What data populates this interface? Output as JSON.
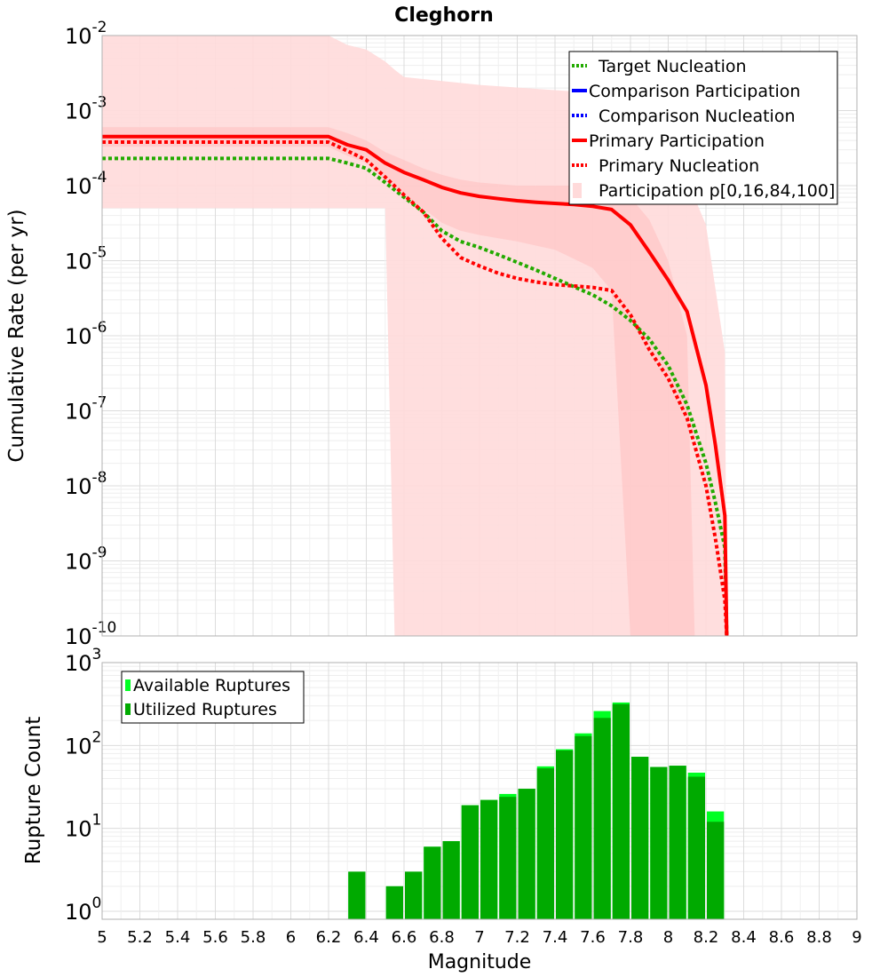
{
  "chart_data": [
    {
      "type": "line",
      "title": "Cleghorn",
      "xlabel": "",
      "ylabel": "Cumulative Rate (per yr)",
      "xlim": [
        5,
        9
      ],
      "ylim": [
        1e-10,
        0.01
      ],
      "yscale": "log",
      "grid": true,
      "legend_position": "top-right",
      "y_tick_labels": [
        {
          "base": "10",
          "exp": "-2",
          "value": 0.01
        },
        {
          "base": "10",
          "exp": "-3",
          "value": 0.001
        },
        {
          "base": "10",
          "exp": "-4",
          "value": 0.0001
        },
        {
          "base": "10",
          "exp": "-5",
          "value": 1e-05
        },
        {
          "base": "10",
          "exp": "-6",
          "value": 1e-06
        },
        {
          "base": "10",
          "exp": "-7",
          "value": 1e-07
        },
        {
          "base": "10",
          "exp": "-8",
          "value": 1e-08
        },
        {
          "base": "10",
          "exp": "-9",
          "value": 1e-09
        },
        {
          "base": "10",
          "exp": "-10",
          "value": 1e-10
        }
      ],
      "legend": [
        {
          "label": "Target Nucleation",
          "color": "#22aa00",
          "style": "dotted"
        },
        {
          "label": "Comparison Participation",
          "color": "#0000ff",
          "style": "solid"
        },
        {
          "label": "Comparison Nucleation",
          "color": "#0000ff",
          "style": "dotted"
        },
        {
          "label": "Primary Participation",
          "color": "#ff0000",
          "style": "solid"
        },
        {
          "label": "Primary Nucleation",
          "color": "#ff0000",
          "style": "dotted"
        },
        {
          "label": "Participation p[0,16,84,100]",
          "color": "#ffdada",
          "style": "band"
        }
      ],
      "series": [
        {
          "name": "Target Nucleation",
          "color": "#22aa00",
          "style": "dotted",
          "x": [
            5.0,
            6.2,
            6.3,
            6.4,
            6.5,
            6.6,
            6.7,
            6.8,
            6.9,
            7.0,
            7.1,
            7.2,
            7.3,
            7.4,
            7.5,
            7.6,
            7.7,
            7.8,
            7.9,
            8.0,
            8.1,
            8.2,
            8.25,
            8.3,
            8.31
          ],
          "y": [
            0.00023,
            0.00023,
            0.0002,
            0.00017,
            0.00011,
            7e-05,
            4.5e-05,
            2.5e-05,
            1.8e-05,
            1.5e-05,
            1.2e-05,
            9.5e-06,
            7.5e-06,
            5.8e-06,
            4.5e-06,
            3.5e-06,
            2.5e-06,
            1.6e-06,
            9e-07,
            4e-07,
            1.2e-07,
            2e-08,
            6e-09,
            1.5e-09,
            1e-10
          ]
        },
        {
          "name": "Primary Participation",
          "color": "#ff0000",
          "style": "solid",
          "x": [
            5.0,
            6.2,
            6.3,
            6.4,
            6.5,
            6.6,
            6.7,
            6.8,
            6.9,
            7.0,
            7.1,
            7.2,
            7.3,
            7.4,
            7.5,
            7.6,
            7.7,
            7.8,
            7.9,
            8.0,
            8.1,
            8.2,
            8.25,
            8.3,
            8.31
          ],
          "y": [
            0.00045,
            0.00045,
            0.00035,
            0.0003,
            0.0002,
            0.00015,
            0.00012,
            9.5e-05,
            8e-05,
            7.2e-05,
            6.7e-05,
            6.3e-05,
            6e-05,
            5.8e-05,
            5.6e-05,
            5.3e-05,
            4.8e-05,
            3e-05,
            1.3e-05,
            5.5e-06,
            2.1e-06,
            2.2e-07,
            3.5e-08,
            4e-09,
            1e-10
          ]
        },
        {
          "name": "Primary Nucleation",
          "color": "#ff0000",
          "style": "dotted",
          "x": [
            5.0,
            6.2,
            6.3,
            6.4,
            6.5,
            6.6,
            6.7,
            6.8,
            6.9,
            7.0,
            7.1,
            7.2,
            7.3,
            7.4,
            7.5,
            7.6,
            7.7,
            7.8,
            7.9,
            8.0,
            8.1,
            8.2,
            8.25,
            8.3,
            8.31
          ],
          "y": [
            0.00038,
            0.00038,
            0.00029,
            0.00022,
            0.00013,
            7.5e-05,
            4.5e-05,
            2e-05,
            1.1e-05,
            8.5e-06,
            6.8e-06,
            5.8e-06,
            5.2e-06,
            4.8e-06,
            4.6e-06,
            4.4e-06,
            4e-06,
            1.9e-06,
            6.5e-07,
            2.7e-07,
            8e-08,
            1e-08,
            2e-09,
            3e-10,
            1e-10
          ]
        }
      ],
      "bands": [
        {
          "name": "p0-p100",
          "color": "#ffdada",
          "opacity": 0.9,
          "x": [
            5.0,
            6.2,
            6.3,
            6.4,
            6.5,
            6.55,
            6.6,
            7.0,
            7.5,
            7.7,
            7.8,
            7.9,
            8.0,
            8.1,
            8.2,
            8.3,
            8.31
          ],
          "low": [
            5e-05,
            5e-05,
            5e-05,
            5e-05,
            5e-05,
            1e-10,
            1e-10,
            1e-10,
            1e-10,
            1e-10,
            1e-10,
            1e-10,
            1e-10,
            1e-10,
            1e-10,
            1e-10,
            1e-10
          ],
          "high": [
            0.01,
            0.01,
            0.0075,
            0.0065,
            0.0045,
            0.0035,
            0.0028,
            0.0022,
            0.0018,
            0.0015,
            0.001,
            0.00055,
            0.00025,
            0.00012,
            3e-05,
            6e-07,
            1e-10
          ]
        },
        {
          "name": "p16-p84",
          "color": "#ffc0c0",
          "opacity": 0.55,
          "x": [
            5.0,
            6.2,
            6.3,
            6.4,
            6.5,
            6.6,
            6.7,
            6.8,
            6.9,
            7.0,
            7.2,
            7.4,
            7.6,
            7.7,
            7.8,
            7.9,
            8.0,
            8.1,
            8.14
          ],
          "low": [
            0.00033,
            0.00033,
            0.00025,
            0.0002,
            0.00012,
            7.5e-05,
            5e-05,
            3.2e-05,
            2.5e-05,
            2.2e-05,
            1.8e-05,
            1.4e-05,
            8e-06,
            4e-06,
            1e-10,
            1e-10,
            1e-10,
            1e-10,
            1e-10
          ],
          "high": [
            0.0006,
            0.0006,
            0.0005,
            0.0004,
            0.00028,
            0.00022,
            0.00017,
            0.00014,
            0.00012,
            0.00011,
            0.0001,
            0.0001,
            0.0001,
            9.5e-05,
            7e-05,
            3.5e-05,
            1e-05,
            1e-06,
            1e-10
          ]
        }
      ]
    },
    {
      "type": "bar",
      "title": "",
      "xlabel": "Magnitude",
      "ylabel": "Rupture Count",
      "xlim": [
        5,
        9
      ],
      "ylim": [
        0.8,
        1000
      ],
      "yscale": "log",
      "grid": true,
      "legend_position": "top-left",
      "x_tick_labels": [
        "5",
        "5.2",
        "5.4",
        "5.6",
        "5.8",
        "6",
        "6.2",
        "6.4",
        "6.6",
        "6.8",
        "7",
        "7.2",
        "7.4",
        "7.6",
        "7.8",
        "8",
        "8.2",
        "8.4",
        "8.6",
        "8.8",
        "9"
      ],
      "y_tick_labels": [
        {
          "base": "10",
          "exp": "3",
          "value": 1000
        },
        {
          "base": "10",
          "exp": "2",
          "value": 100
        },
        {
          "base": "10",
          "exp": "1",
          "value": 10
        },
        {
          "base": "10",
          "exp": "0",
          "value": 1
        }
      ],
      "legend": [
        {
          "label": "Available Ruptures",
          "color": "#00ff22"
        },
        {
          "label": "Utilized Ruptures",
          "color": "#00aa00"
        }
      ],
      "bin_width": 0.1,
      "bin_centers": [
        6.35,
        6.55,
        6.65,
        6.75,
        6.85,
        6.95,
        7.05,
        7.15,
        7.25,
        7.35,
        7.45,
        7.55,
        7.65,
        7.75,
        7.85,
        7.95,
        8.05,
        8.15,
        8.25
      ],
      "series": [
        {
          "name": "Available Ruptures",
          "color": "#00ff22",
          "values": [
            3,
            2,
            3,
            6,
            7,
            19,
            22,
            26,
            30,
            56,
            90,
            140,
            260,
            330,
            73,
            55,
            57,
            47,
            16
          ]
        },
        {
          "name": "Utilized Ruptures",
          "color": "#00aa00",
          "values": [
            3,
            2,
            3,
            6,
            7,
            19,
            22,
            24,
            30,
            53,
            87,
            130,
            215,
            315,
            73,
            55,
            57,
            42,
            12
          ]
        }
      ]
    }
  ]
}
